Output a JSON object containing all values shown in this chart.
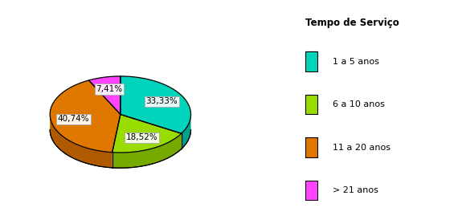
{
  "title": "Tempo de Serviço",
  "labels": [
    "1 a 5 anos",
    "6 a 10 anos",
    "11 a 20 anos",
    "> 21 anos"
  ],
  "values": [
    33.33,
    18.52,
    40.74,
    7.41
  ],
  "colors": [
    "#00d4bb",
    "#99dd00",
    "#e07800",
    "#ff44ff"
  ],
  "side_colors": [
    "#00a08a",
    "#77aa00",
    "#b05a00",
    "#cc00cc"
  ],
  "pct_labels": [
    "33,33%",
    "18,52%",
    "40,74%",
    "7,41%"
  ],
  "startangle": 90,
  "legend_title": "Tempo de Serviço",
  "bg_color": "#ffffff"
}
